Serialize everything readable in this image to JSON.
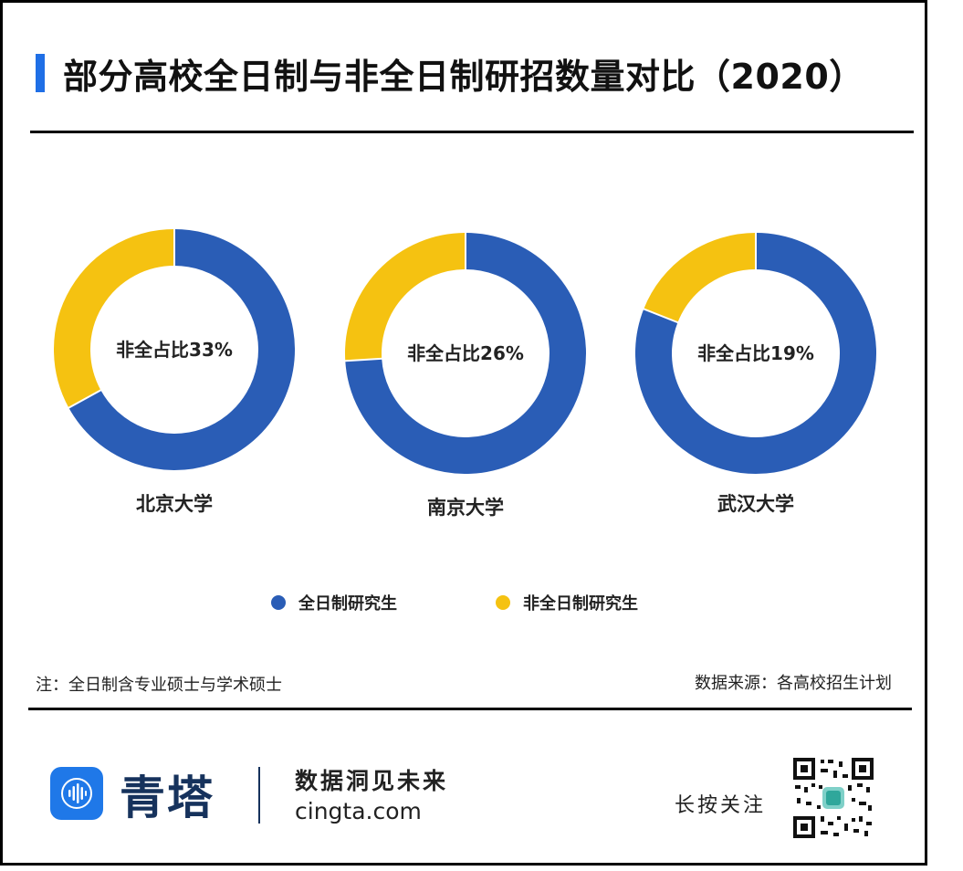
{
  "header": {
    "title": "部分高校全日制与非全日制研招数量对比（2020）",
    "accent_color": "#1f6fe6"
  },
  "chart_data": {
    "type": "pie",
    "variant": "donut",
    "colors": {
      "full_time": "#2a5db6",
      "part_time": "#f5c211"
    },
    "legend": {
      "placement": "bottom-center",
      "entries": [
        "全日制研究生",
        "非全日制研究生"
      ]
    },
    "charts": [
      {
        "category": "北京大学",
        "center_label": "非全占比33%",
        "slices": [
          {
            "name": "全日制研究生",
            "value": 67
          },
          {
            "name": "非全日制研究生",
            "value": 33
          }
        ]
      },
      {
        "category": "南京大学",
        "center_label": "非全占比26%",
        "slices": [
          {
            "name": "全日制研究生",
            "value": 74
          },
          {
            "name": "非全日制研究生",
            "value": 26
          }
        ]
      },
      {
        "category": "武汉大学",
        "center_label": "非全占比19%",
        "slices": [
          {
            "name": "全日制研究生",
            "value": 81
          },
          {
            "name": "非全日制研究生",
            "value": 19
          }
        ]
      }
    ]
  },
  "notes": {
    "note": "注：全日制含专业硕士与学术硕士",
    "source": "数据来源：各高校招生计划"
  },
  "footer": {
    "brand_name": "青塔",
    "brand_icon": "sound-wave-icon",
    "slogan": "数据洞见未来",
    "domain": "cingta.com",
    "follow_text": "长按关注",
    "qr_icon": "qr-code-icon"
  }
}
